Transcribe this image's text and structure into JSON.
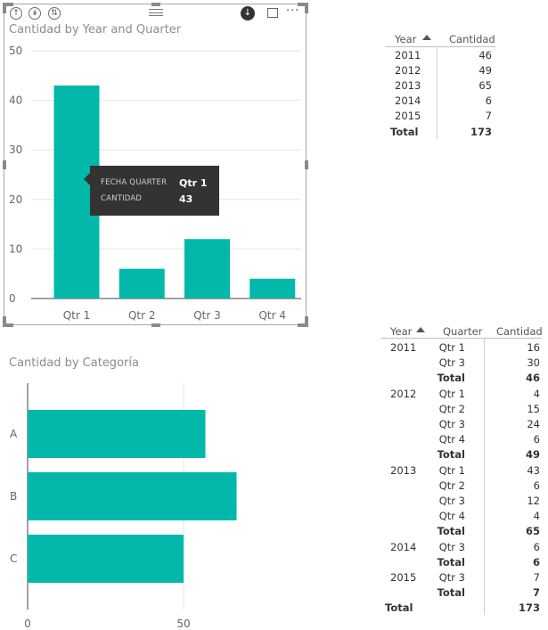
{
  "visual1": {
    "title": "Cantidad by Year and Quarter",
    "header_icons": [
      "drill-up-icon",
      "drill-down-icon",
      "expand-hierarchy-icon"
    ],
    "menu_icons": [
      "drill-mode-icon",
      "focus-mode-icon",
      "more-options-icon"
    ],
    "more_label": "···"
  },
  "visual2": {
    "title": "Cantidad by Categoría"
  },
  "tooltip": {
    "label1": "FECHA QUARTER",
    "value1": "Qtr 1",
    "label2": "CANTIDAD",
    "value2": "43"
  },
  "chart_data": [
    {
      "type": "bar",
      "title": "Cantidad by Year and Quarter",
      "categories": [
        "Qtr 1",
        "Qtr 2",
        "Qtr 3",
        "Qtr 4"
      ],
      "values": [
        43,
        6,
        12,
        4
      ],
      "ylim": [
        0,
        50
      ],
      "yticks": [
        "0",
        "10",
        "20",
        "30",
        "40",
        "50"
      ],
      "xlabel": "",
      "ylabel": "",
      "color": "#01b8aa",
      "grid": true
    },
    {
      "type": "bar",
      "orientation": "horizontal",
      "title": "Cantidad by Categoría",
      "categories": [
        "A",
        "B",
        "C"
      ],
      "values": [
        57,
        67,
        50
      ],
      "xlim": [
        0,
        67
      ],
      "xticks": [
        "0",
        "50"
      ],
      "xlabel": "",
      "ylabel": "",
      "color": "#01b8aa",
      "grid": true
    }
  ],
  "table1": {
    "headers": [
      "Year",
      "Cantidad"
    ],
    "rows": [
      {
        "year": "2011",
        "cantidad": "46"
      },
      {
        "year": "2012",
        "cantidad": "49"
      },
      {
        "year": "2013",
        "cantidad": "65"
      },
      {
        "year": "2014",
        "cantidad": "6"
      },
      {
        "year": "2015",
        "cantidad": "7"
      }
    ],
    "total_label": "Total",
    "total_value": "173"
  },
  "table2": {
    "headers": [
      "Year",
      "Quarter",
      "Cantidad"
    ],
    "rows": [
      {
        "year": "2011",
        "quarter": "Qtr 1",
        "cantidad": "16",
        "bold": false
      },
      {
        "year": "",
        "quarter": "Qtr 3",
        "cantidad": "30",
        "bold": false
      },
      {
        "year": "",
        "quarter": "Total",
        "cantidad": "46",
        "bold": true
      },
      {
        "year": "2012",
        "quarter": "Qtr 1",
        "cantidad": "4",
        "bold": false
      },
      {
        "year": "",
        "quarter": "Qtr 2",
        "cantidad": "15",
        "bold": false
      },
      {
        "year": "",
        "quarter": "Qtr 3",
        "cantidad": "24",
        "bold": false
      },
      {
        "year": "",
        "quarter": "Qtr 4",
        "cantidad": "6",
        "bold": false
      },
      {
        "year": "",
        "quarter": "Total",
        "cantidad": "49",
        "bold": true
      },
      {
        "year": "2013",
        "quarter": "Qtr 1",
        "cantidad": "43",
        "bold": false
      },
      {
        "year": "",
        "quarter": "Qtr 2",
        "cantidad": "6",
        "bold": false
      },
      {
        "year": "",
        "quarter": "Qtr 3",
        "cantidad": "12",
        "bold": false
      },
      {
        "year": "",
        "quarter": "Qtr 4",
        "cantidad": "4",
        "bold": false
      },
      {
        "year": "",
        "quarter": "Total",
        "cantidad": "65",
        "bold": true
      },
      {
        "year": "2014",
        "quarter": "Qtr 3",
        "cantidad": "6",
        "bold": false
      },
      {
        "year": "",
        "quarter": "Total",
        "cantidad": "6",
        "bold": true
      },
      {
        "year": "2015",
        "quarter": "Qtr 3",
        "cantidad": "7",
        "bold": false
      },
      {
        "year": "",
        "quarter": "Total",
        "cantidad": "7",
        "bold": true
      }
    ],
    "total_label": "Total",
    "total_value": "173"
  }
}
